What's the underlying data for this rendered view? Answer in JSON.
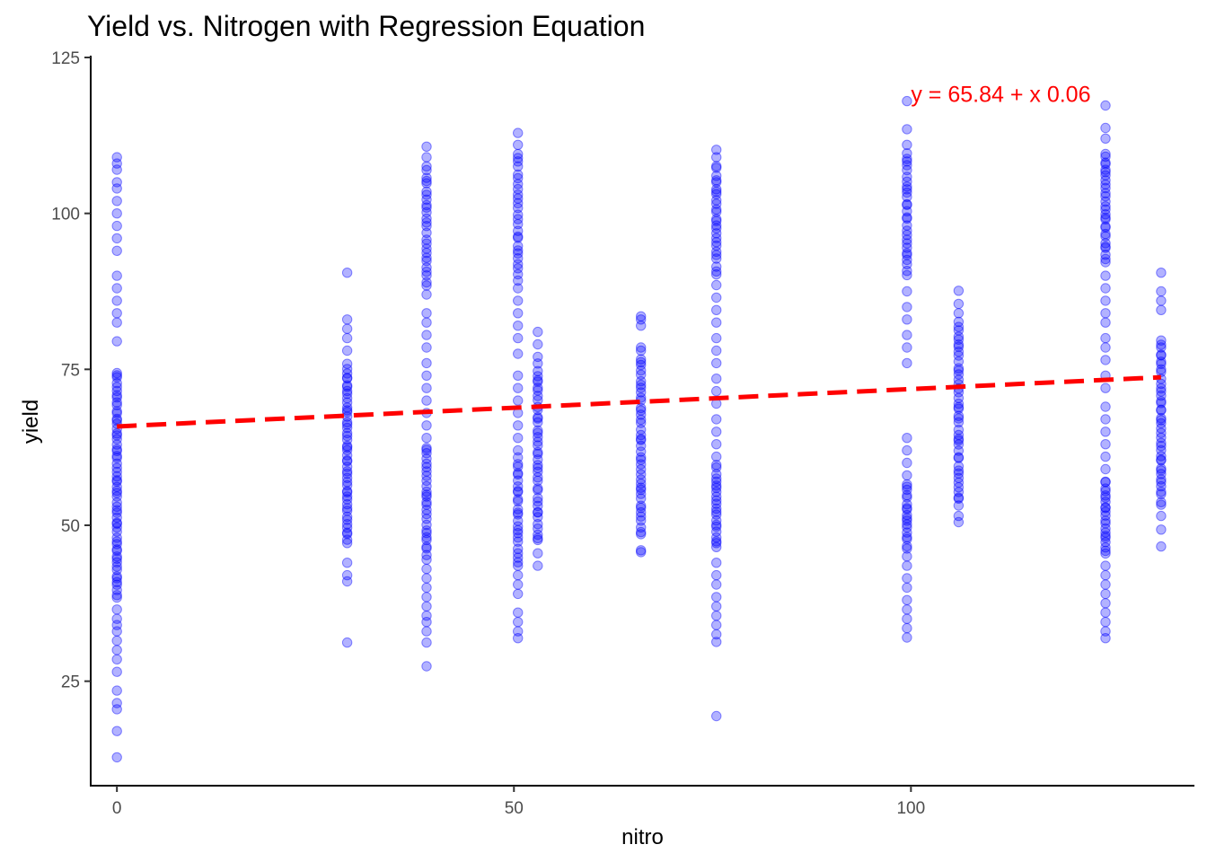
{
  "chart_data": {
    "type": "scatter",
    "title": "Yield vs. Nitrogen with Regression Equation",
    "xlabel": "nitro",
    "ylabel": "yield",
    "xlim": [
      -3.3,
      135.7
    ],
    "ylim": [
      8.25,
      125.0
    ],
    "x_ticks": [
      0,
      50,
      100
    ],
    "y_ticks": [
      25,
      50,
      75,
      100,
      125
    ],
    "grid": false,
    "point_color": "#0000ff",
    "point_opacity": 0.3,
    "line_color": "#ff0000",
    "regression": {
      "intercept": 65.84,
      "slope": 0.06,
      "x_range": [
        0,
        131.5
      ]
    },
    "annotation": {
      "text": "y = 65.84 + x 0.06",
      "color": "#ff0000",
      "x": 100,
      "y": 119
    },
    "groups": [
      {
        "x": 0,
        "min": 12.8,
        "max": 109,
        "extra": [
          12.8,
          17,
          20.5,
          21.5,
          23.5,
          26.5,
          28.5,
          30,
          31.5,
          33,
          34,
          35,
          36.5,
          79.5,
          82.5,
          84,
          86,
          88,
          90,
          94,
          96,
          98,
          100,
          102,
          104,
          105,
          107,
          108,
          109
        ],
        "dense": [
          [
            38,
            75,
            60
          ]
        ]
      },
      {
        "x": 29,
        "min": 31.2,
        "max": 90.5,
        "extra": [
          31.2,
          41,
          42,
          44,
          90.5,
          83,
          81.5,
          80,
          78
        ],
        "dense": [
          [
            47,
            76,
            48
          ]
        ]
      },
      {
        "x": 39,
        "min": 27.4,
        "max": 110.7,
        "extra": [
          27.4,
          31.2,
          33,
          34.5,
          35.5,
          37,
          38.5,
          40,
          41.5,
          43,
          44.5,
          64,
          66,
          68,
          70,
          72,
          74,
          76,
          78.5,
          80.5,
          82.5,
          84,
          87,
          110.7,
          109
        ],
        "dense": [
          [
            45,
            63,
            26
          ],
          [
            88,
            108,
            26
          ]
        ]
      },
      {
        "x": 50.5,
        "min": 31.9,
        "max": 112.9,
        "extra": [
          31.9,
          33,
          34.5,
          36,
          39,
          40.5,
          42,
          43.5,
          62,
          64,
          66,
          68,
          70,
          72,
          74,
          77.5,
          80,
          82,
          84,
          86,
          88,
          112.9,
          111
        ],
        "dense": [
          [
            44,
            61,
            24
          ],
          [
            89,
            110,
            26
          ]
        ]
      },
      {
        "x": 53,
        "min": 43.5,
        "max": 81,
        "extra": [
          43.5,
          45.5,
          81,
          79,
          77
        ],
        "dense": [
          [
            47,
            76,
            40
          ]
        ]
      },
      {
        "x": 66,
        "min": 45.7,
        "max": 83.5,
        "extra": [
          45.7,
          46,
          83.5,
          83,
          82,
          78.5
        ],
        "dense": [
          [
            48,
            78,
            42
          ]
        ]
      },
      {
        "x": 75.5,
        "min": 19.4,
        "max": 110.2,
        "extra": [
          19.4,
          31.3,
          32.5,
          34,
          35.5,
          37,
          38.5,
          40.5,
          42,
          44,
          61,
          63,
          65,
          67,
          69.5,
          71.5,
          73.5,
          76,
          78,
          80,
          82.5,
          84.5,
          86.5,
          88.5,
          110.2,
          109
        ],
        "dense": [
          [
            46,
            60,
            22
          ],
          [
            90,
            108,
            26
          ]
        ]
      },
      {
        "x": 99.5,
        "min": 32,
        "max": 118,
        "extra": [
          32,
          33.5,
          35,
          36.5,
          38,
          40,
          41.5,
          43.5,
          45,
          58,
          60,
          62,
          64,
          76,
          78.5,
          80.5,
          83,
          85,
          87.5,
          113.5,
          118,
          111
        ],
        "dense": [
          [
            46,
            57,
            18
          ],
          [
            90,
            110,
            28
          ]
        ]
      },
      {
        "x": 106,
        "min": 50.5,
        "max": 87.6,
        "extra": [
          50.5,
          51.5,
          87.6,
          85.5,
          84
        ],
        "dense": [
          [
            53,
            83,
            42
          ]
        ]
      },
      {
        "x": 124.5,
        "min": 31.9,
        "max": 117.3,
        "extra": [
          31.9,
          33,
          34.5,
          36,
          37.5,
          39,
          40.5,
          42,
          43.5,
          57,
          59,
          61,
          63,
          65,
          67,
          69,
          72,
          74,
          76.5,
          78.5,
          80,
          82.5,
          84,
          86,
          88,
          90,
          113.7,
          117.3,
          112
        ],
        "dense": [
          [
            45,
            57,
            20
          ],
          [
            92,
            110,
            28
          ]
        ]
      },
      {
        "x": 131.5,
        "min": 46.6,
        "max": 90.5,
        "extra": [
          46.6,
          49.3,
          51.5,
          90.5,
          87.5,
          86,
          84.5
        ],
        "dense": [
          [
            53,
            80,
            40
          ]
        ]
      }
    ]
  }
}
